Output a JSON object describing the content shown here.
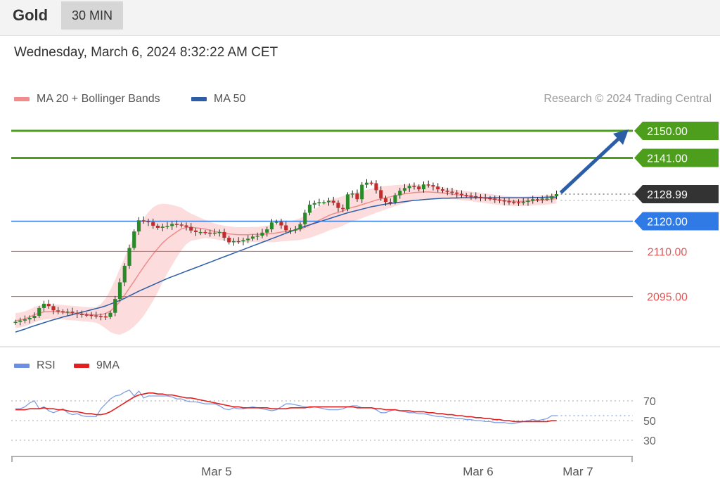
{
  "header": {
    "symbol": "Gold",
    "timeframe": "30 MIN"
  },
  "timestamp": "Wednesday, March 6, 2024 8:32:22 AM CET",
  "legend_main": [
    {
      "label": "MA 20 + Bollinger Bands",
      "color": "#f28c8c"
    },
    {
      "label": "MA 50",
      "color": "#2c5ea8"
    }
  ],
  "legend_rsi": [
    {
      "label": "RSI",
      "color": "#6b8fe0"
    },
    {
      "label": "9MA",
      "color": "#e31f1f"
    }
  ],
  "credit": "Research © 2024 Trading Central",
  "colors": {
    "up": "#2a8a2a",
    "down": "#c42b2b",
    "target": "#4c9e1c",
    "pivot": "#2f7ae5",
    "support": "#e05757",
    "last": "#333333",
    "band": "#fbd6d6",
    "arrow": "#2c5ea8"
  },
  "chart_data": [
    {
      "type": "candlestick",
      "title": "Gold 30 MIN",
      "ylim": [
        2083,
        2157
      ],
      "x_ticks": [
        "Mar 5",
        "Mar 6",
        "Mar 7"
      ],
      "levels": [
        {
          "value": 2150.0,
          "label": "2150.00",
          "kind": "target"
        },
        {
          "value": 2141.0,
          "label": "2141.00",
          "kind": "target"
        },
        {
          "value": 2128.99,
          "label": "2128.99",
          "kind": "last"
        },
        {
          "value": 2120.0,
          "label": "2120.00",
          "kind": "pivot"
        },
        {
          "value": 2110.0,
          "label": "2110.00",
          "kind": "support"
        },
        {
          "value": 2095.0,
          "label": "2095.00",
          "kind": "support"
        }
      ],
      "close": [
        2086.6,
        2087.0,
        2087.4,
        2087.9,
        2088.6,
        2091.2,
        2092.6,
        2091.8,
        2090.4,
        2090.1,
        2089.8,
        2090.0,
        2089.6,
        2089.2,
        2089.0,
        2088.9,
        2088.7,
        2088.5,
        2088.4,
        2088.2,
        2089.6,
        2094.2,
        2099.7,
        2105.2,
        2111.1,
        2116.6,
        2120.3,
        2120.0,
        2119.7,
        2118.5,
        2117.8,
        2118.2,
        2118.4,
        2119.1,
        2118.9,
        2118.6,
        2118.1,
        2116.9,
        2116.4,
        2116.4,
        2116.2,
        2116.0,
        2116.2,
        2116.4,
        2114.5,
        2113.0,
        2113.4,
        2113.3,
        2113.7,
        2114.2,
        2114.9,
        2115.2,
        2116.2,
        2117.3,
        2119.6,
        2119.8,
        2118.6,
        2117.0,
        2117.0,
        2117.3,
        2119.0,
        2122.8,
        2125.5,
        2126.0,
        2126.3,
        2126.3,
        2126.8,
        2126.1,
        2124.4,
        2124.0,
        2128.9,
        2129.2,
        2127.3,
        2132.1,
        2132.8,
        2132.6,
        2130.3,
        2127.6,
        2126.4,
        2126.3,
        2128.6,
        2130.1,
        2131.0,
        2131.7,
        2131.5,
        2130.6,
        2132.2,
        2132.0,
        2131.5,
        2130.6,
        2130.1,
        2129.8,
        2129.5,
        2129.1,
        2128.7,
        2128.5,
        2128.3,
        2128.1,
        2127.9,
        2127.7,
        2127.5,
        2127.2,
        2126.9,
        2126.6,
        2126.4,
        2126.3,
        2126.2,
        2126.4,
        2126.8,
        2127.3,
        2127.1,
        2127.5,
        2127.5,
        2128.3,
        2128.99
      ],
      "ma20": [
        2087.0,
        2087.2,
        2087.6,
        2088.2,
        2089.0,
        2089.5,
        2089.9,
        2090.0,
        2090.0,
        2089.9,
        2089.8,
        2089.6,
        2089.5,
        2089.4,
        2089.2,
        2089.1,
        2089.0,
        2088.9,
        2089.0,
        2089.4,
        2090.2,
        2091.6,
        2093.3,
        2095.5,
        2097.8,
        2100.1,
        2102.5,
        2104.8,
        2107.0,
        2109.1,
        2111.0,
        2112.8,
        2114.2,
        2115.4,
        2116.5,
        2117.5,
        2117.9,
        2118.0,
        2117.8,
        2117.6,
        2117.4,
        2117.0,
        2116.6,
        2116.3,
        2116.0,
        2115.8,
        2115.6,
        2115.5,
        2115.5,
        2115.5,
        2115.6,
        2115.6,
        2115.7,
        2115.8,
        2115.9,
        2116.1,
        2116.4,
        2116.6,
        2116.8,
        2117.0,
        2117.4,
        2118.0,
        2118.7,
        2119.5,
        2120.3,
        2121.1,
        2121.9,
        2122.5,
        2122.9,
        2123.4,
        2124.1,
        2124.6,
        2125.0,
        2125.5,
        2126.0,
        2126.5,
        2127.0,
        2127.4,
        2127.8,
        2128.1,
        2128.5,
        2128.8,
        2129.1,
        2129.3,
        2129.5,
        2129.6,
        2129.7,
        2129.7,
        2129.6,
        2129.5,
        2129.4,
        2129.2,
        2129.0,
        2128.8,
        2128.6,
        2128.4,
        2128.2,
        2128.0,
        2127.8,
        2127.6,
        2127.4,
        2127.2,
        2127.0,
        2126.8,
        2126.7,
        2126.6,
        2126.6,
        2126.6,
        2126.7,
        2126.8,
        2126.9,
        2127.0,
        2127.1,
        2127.3,
        2127.5
      ],
      "ma50": [
        2083.2,
        2083.7,
        2084.2,
        2084.8,
        2085.3,
        2085.8,
        2086.3,
        2086.8,
        2087.3,
        2087.7,
        2088.2,
        2088.6,
        2089.0,
        2089.4,
        2089.8,
        2090.2,
        2090.6,
        2091.0,
        2091.4,
        2091.9,
        2092.5,
        2093.1,
        2093.7,
        2094.4,
        2095.2,
        2096.0,
        2096.8,
        2097.5,
        2098.2,
        2098.9,
        2099.6,
        2100.3,
        2101.0,
        2101.6,
        2102.2,
        2102.8,
        2103.4,
        2104.0,
        2104.6,
        2105.2,
        2105.8,
        2106.4,
        2107.0,
        2107.6,
        2108.2,
        2108.8,
        2109.4,
        2110.0,
        2110.6,
        2111.2,
        2111.8,
        2112.4,
        2113.0,
        2113.6,
        2114.2,
        2114.8,
        2115.4,
        2116.0,
        2116.6,
        2117.2,
        2117.8,
        2118.3,
        2118.8,
        2119.3,
        2119.8,
        2120.3,
        2120.8,
        2121.3,
        2121.8,
        2122.3,
        2122.8,
        2123.2,
        2123.6,
        2124.0,
        2124.4,
        2124.8,
        2125.1,
        2125.4,
        2125.7,
        2125.9,
        2126.1,
        2126.3,
        2126.5,
        2126.7,
        2126.9,
        2127.0,
        2127.2,
        2127.3,
        2127.4,
        2127.5,
        2127.6,
        2127.6,
        2127.7,
        2127.7,
        2127.8,
        2127.8,
        2127.8,
        2127.8,
        2127.8,
        2127.8,
        2127.8,
        2127.8,
        2127.8,
        2127.8,
        2127.8,
        2127.8,
        2127.8,
        2127.8,
        2127.8,
        2127.9,
        2127.9,
        2127.9,
        2128.0,
        2128.0,
        2128.0
      ],
      "bollinger_width": [
        2.5,
        2.5,
        2.5,
        2.5,
        2.5,
        2.5,
        2.5,
        2.5,
        2.4,
        2.4,
        2.4,
        2.4,
        2.4,
        2.4,
        2.4,
        2.4,
        2.4,
        2.6,
        3.5,
        5.0,
        7.0,
        9.0,
        11.0,
        12.5,
        14.0,
        15.0,
        15.8,
        16.2,
        16.0,
        15.5,
        14.5,
        13.0,
        11.5,
        10.0,
        8.5,
        7.0,
        5.5,
        4.5,
        4.0,
        3.5,
        3.0,
        2.8,
        2.6,
        2.5,
        2.5,
        2.5,
        2.5,
        2.5,
        2.5,
        2.5,
        2.5,
        2.5,
        2.6,
        2.7,
        2.9,
        3.0,
        3.1,
        3.2,
        3.3,
        3.4,
        3.6,
        3.9,
        4.2,
        4.5,
        4.7,
        4.9,
        5.0,
        5.0,
        5.0,
        4.9,
        4.8,
        4.7,
        4.6,
        4.5,
        4.4,
        4.3,
        4.2,
        4.1,
        3.9,
        3.7,
        3.5,
        3.3,
        3.1,
        2.9,
        2.7,
        2.5,
        2.3,
        2.2,
        2.1,
        2.0,
        1.9,
        1.8,
        1.7,
        1.6,
        1.6,
        1.6,
        1.6,
        1.6,
        1.6,
        1.6,
        1.6,
        1.6,
        1.6,
        1.6,
        1.6,
        1.6,
        1.6,
        1.6,
        1.6,
        1.6,
        1.6,
        1.6,
        1.6,
        1.6,
        1.6
      ]
    },
    {
      "type": "line",
      "title": "RSI",
      "ylim": [
        20,
        90
      ],
      "y_ticks": [
        70,
        50,
        30
      ],
      "series": [
        {
          "name": "RSI",
          "values": [
            62,
            62,
            64,
            68,
            70,
            62,
            64,
            60,
            58,
            60,
            62,
            58,
            56,
            57,
            55,
            54,
            54,
            54,
            62,
            67,
            72,
            75,
            76,
            79,
            81,
            75,
            80,
            73,
            75,
            75,
            75,
            75,
            75,
            74,
            72,
            72,
            70,
            69,
            69,
            68,
            67,
            67,
            67,
            65,
            62,
            61,
            63,
            62,
            62,
            63,
            64,
            63,
            62,
            61,
            60,
            61,
            64,
            67,
            67,
            66,
            65,
            64,
            63,
            64,
            63,
            62,
            61,
            61,
            61,
            62,
            64,
            65,
            65,
            63,
            63,
            63,
            61,
            58,
            58,
            60,
            61,
            60,
            59,
            58,
            58,
            57,
            57,
            56,
            55,
            54,
            54,
            53,
            53,
            52,
            52,
            51,
            51,
            50,
            50,
            49,
            49,
            48,
            48,
            48,
            47,
            47,
            48,
            49,
            50,
            51,
            50,
            51,
            52,
            55,
            55
          ]
        },
        {
          "name": "9MA",
          "values": [
            61,
            61,
            61,
            62,
            62,
            62,
            63,
            62,
            62,
            61,
            61,
            60,
            59,
            59,
            58,
            57,
            57,
            56,
            56,
            57,
            59,
            62,
            65,
            68,
            71,
            74,
            76,
            77,
            78,
            78,
            77,
            77,
            76,
            76,
            75,
            74,
            73,
            73,
            72,
            71,
            70,
            69,
            68,
            67,
            66,
            65,
            64,
            64,
            63,
            63,
            63,
            63,
            63,
            63,
            62,
            62,
            62,
            62,
            63,
            63,
            63,
            63,
            64,
            64,
            64,
            64,
            64,
            64,
            64,
            64,
            64,
            64,
            63,
            63,
            63,
            63,
            62,
            62,
            61,
            61,
            61,
            60,
            60,
            60,
            59,
            59,
            59,
            58,
            58,
            57,
            57,
            56,
            56,
            55,
            55,
            54,
            54,
            53,
            53,
            52,
            52,
            51,
            51,
            50,
            50,
            49,
            49,
            49,
            49,
            49,
            49,
            49,
            49,
            50,
            50
          ]
        }
      ]
    }
  ]
}
